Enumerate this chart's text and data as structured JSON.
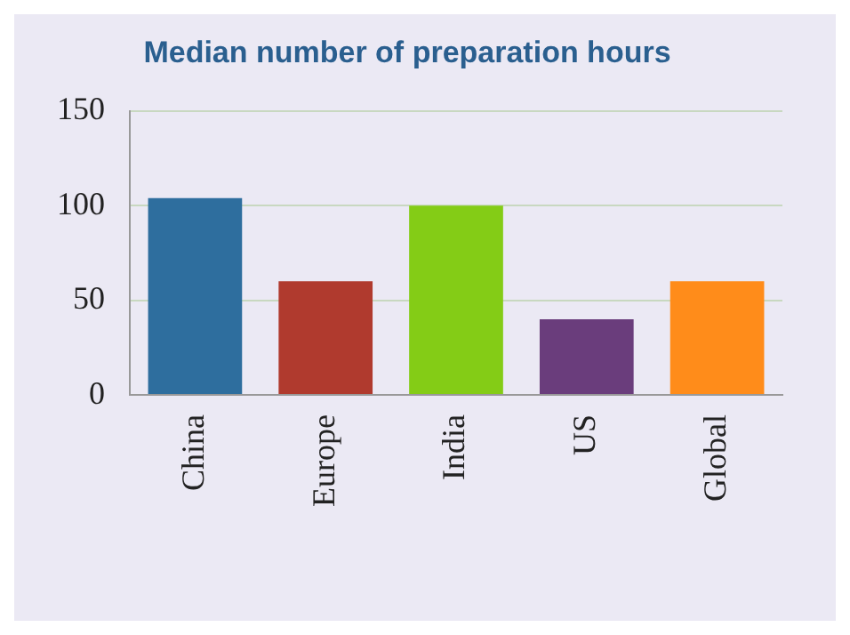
{
  "chart_data": {
    "type": "bar",
    "title": "Median number of preparation hours",
    "categories": [
      "China",
      "Europe",
      "India",
      "US",
      "Global"
    ],
    "values": [
      104,
      60,
      100,
      40,
      60
    ],
    "colors": [
      "#2e6e9e",
      "#b03a2e",
      "#84cc16",
      "#6a3d7c",
      "#ff8c1a"
    ],
    "ylim": [
      0,
      150
    ],
    "yticks": [
      0,
      50,
      100,
      150
    ],
    "grid": "y"
  }
}
